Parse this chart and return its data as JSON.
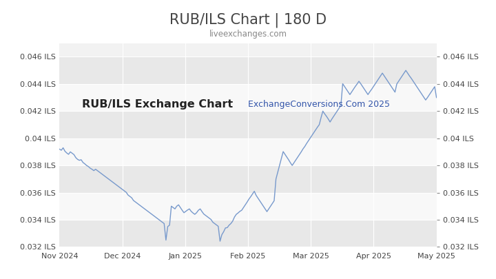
{
  "title": "RUB/ILS Chart | 180 D",
  "subtitle": "liveexchanges.com",
  "watermark1": "RUB/ILS Exchange Chart",
  "watermark2": "ExchangeConversions.Com 2025",
  "ylim": [
    0.032,
    0.047
  ],
  "yticks": [
    0.032,
    0.034,
    0.036,
    0.038,
    0.04,
    0.042,
    0.044,
    0.046
  ],
  "x_labels": [
    "Nov 2024",
    "Dec 2024",
    "Jan 2025",
    "Feb 2025",
    "Mar 2025",
    "Apr 2025",
    "May 2025"
  ],
  "background_color": "#ffffff",
  "plot_bg_color": "#f2f2f2",
  "band_light": "#e8e8e8",
  "band_white": "#f8f8f8",
  "line_color": "#7799cc",
  "title_color": "#444444",
  "subtitle_color": "#888888",
  "watermark1_color": "#222222",
  "watermark2_color": "#3355aa",
  "grid_color": "#ffffff",
  "data": [
    0.0392,
    0.03912,
    0.0393,
    0.03905,
    0.03892,
    0.03882,
    0.039,
    0.0389,
    0.0388,
    0.03858,
    0.03845,
    0.03838,
    0.03842,
    0.03822,
    0.03812,
    0.038,
    0.03792,
    0.0378,
    0.03772,
    0.03762,
    0.03772,
    0.03762,
    0.03752,
    0.03742,
    0.03732,
    0.03722,
    0.03712,
    0.03702,
    0.03692,
    0.03682,
    0.03672,
    0.03662,
    0.03652,
    0.03642,
    0.03632,
    0.03622,
    0.03612,
    0.03602,
    0.03582,
    0.03572,
    0.03562,
    0.03542,
    0.03532,
    0.03522,
    0.03512,
    0.03502,
    0.03492,
    0.03482,
    0.03472,
    0.03462,
    0.03452,
    0.03442,
    0.03432,
    0.03422,
    0.03412,
    0.03402,
    0.03392,
    0.03382,
    0.03372,
    0.0325,
    0.0335,
    0.0336,
    0.035,
    0.0349,
    0.0348,
    0.035,
    0.0351,
    0.0349,
    0.0347,
    0.03452,
    0.03462,
    0.03472,
    0.0348,
    0.03462,
    0.0345,
    0.0344,
    0.03452,
    0.0347,
    0.0348,
    0.0346,
    0.03442,
    0.03432,
    0.03422,
    0.03412,
    0.03402,
    0.03382,
    0.03372,
    0.03362,
    0.03352,
    0.03242,
    0.0329,
    0.03312,
    0.0334,
    0.03342,
    0.0336,
    0.03372,
    0.0339,
    0.0342,
    0.0344,
    0.0345,
    0.03462,
    0.0347,
    0.0349,
    0.0351,
    0.0353,
    0.03552,
    0.0357,
    0.0359,
    0.0361,
    0.0358,
    0.0356,
    0.0354,
    0.0352,
    0.035,
    0.0348,
    0.0346,
    0.0348,
    0.035,
    0.0352,
    0.0354,
    0.037,
    0.0375,
    0.038,
    0.03848,
    0.03902,
    0.03882,
    0.03862,
    0.03842,
    0.0382,
    0.038,
    0.0382,
    0.0384,
    0.0386,
    0.0388,
    0.039,
    0.03922,
    0.0394,
    0.03962,
    0.03982,
    0.04002,
    0.04022,
    0.04042,
    0.04062,
    0.04082,
    0.041,
    0.04152,
    0.042,
    0.0418,
    0.04162,
    0.04142,
    0.0412,
    0.04142,
    0.04162,
    0.04182,
    0.04202,
    0.04222,
    0.04242,
    0.04402,
    0.04382,
    0.04362,
    0.04342,
    0.04322,
    0.04342,
    0.04362,
    0.04382,
    0.044,
    0.0442,
    0.04402,
    0.04382,
    0.04362,
    0.04342,
    0.04322,
    0.04342,
    0.0436,
    0.0438,
    0.044,
    0.0442,
    0.0444,
    0.0446,
    0.0448,
    0.0446,
    0.0444,
    0.0442,
    0.044,
    0.0438,
    0.0436,
    0.0434,
    0.044,
    0.0442,
    0.0444,
    0.0446,
    0.0448,
    0.045,
    0.0448,
    0.0446,
    0.04442,
    0.04422,
    0.04402,
    0.04382,
    0.04362,
    0.04342,
    0.04322,
    0.04302,
    0.04282,
    0.043,
    0.0432,
    0.0434,
    0.0436,
    0.0438,
    0.043
  ]
}
